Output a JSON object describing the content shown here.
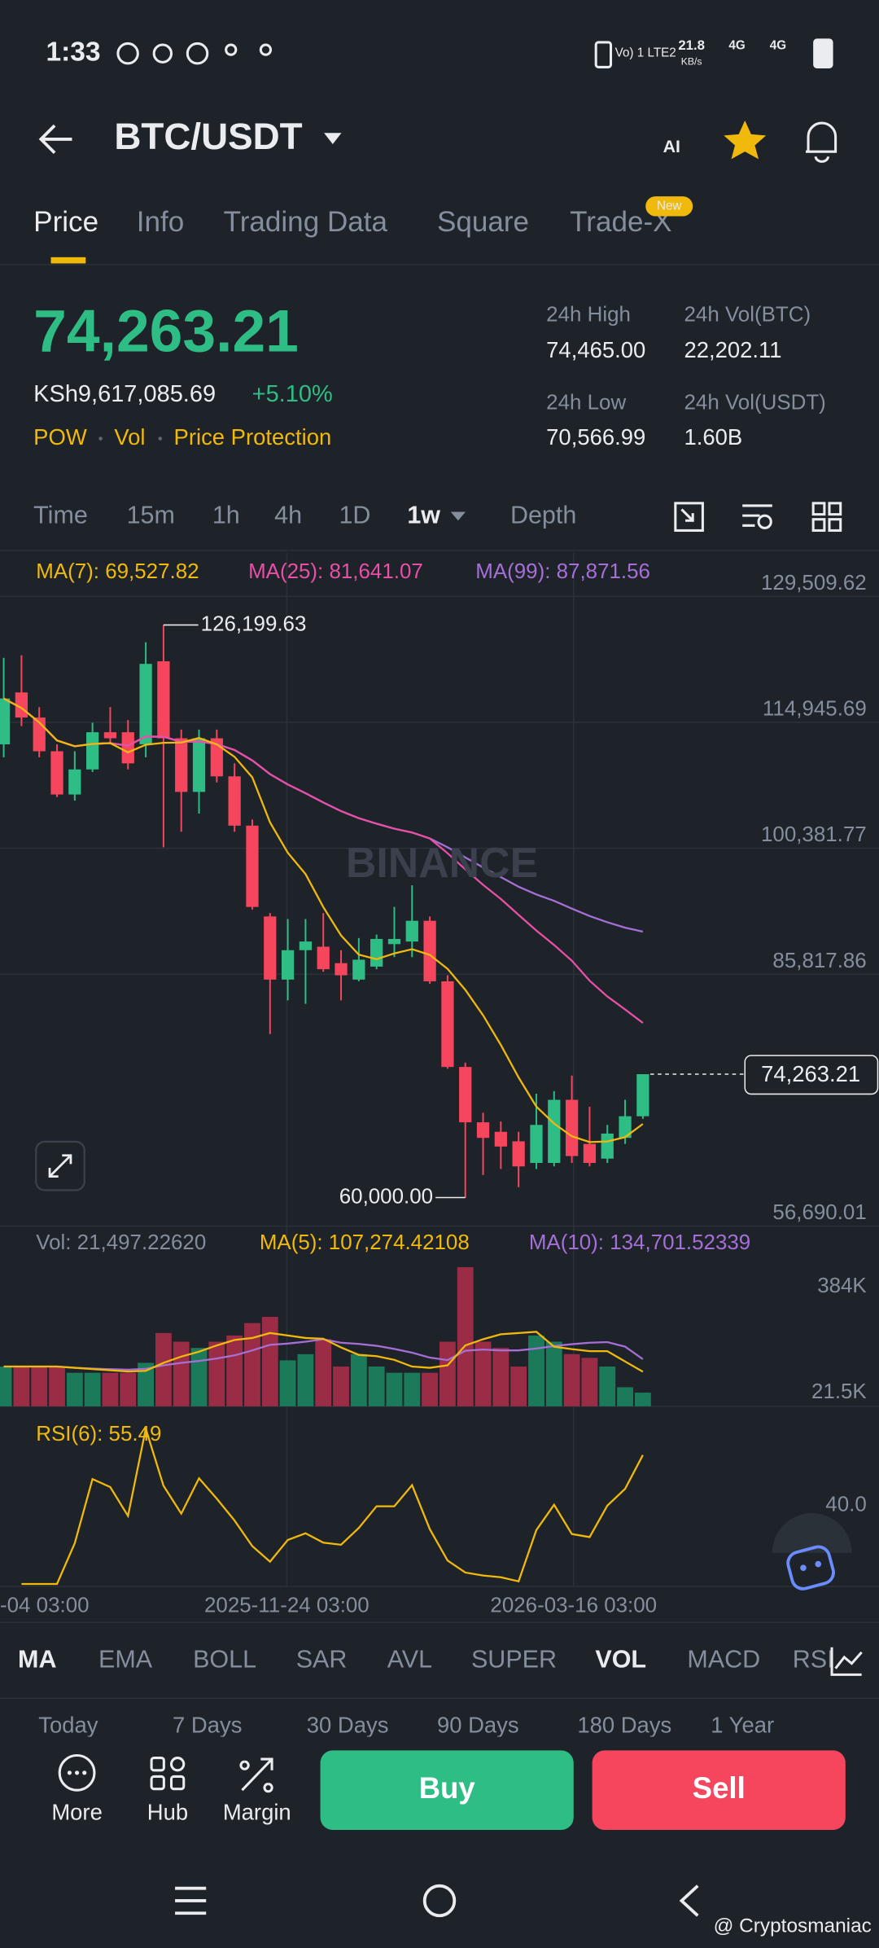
{
  "status_bar": {
    "time": "1:33",
    "lte": "Vo) 1 LTE2",
    "speed": "21.8",
    "speed_unit": "KB/s",
    "net1": "4G",
    "net2": "4G"
  },
  "header": {
    "pair": "BTC/USDT",
    "ai": "AI"
  },
  "tabs": [
    "Price",
    "Info",
    "Trading Data",
    "Square",
    "Trade-X"
  ],
  "new_badge": "New",
  "ticker": {
    "price": "74,263.21",
    "local": "KSh9,617,085.69",
    "change": "+5.10%",
    "tags": [
      "POW",
      "Vol",
      "Price Protection"
    ],
    "stats": [
      {
        "label": "24h High",
        "value": "74,465.00"
      },
      {
        "label": "24h Vol(BTC)",
        "value": "22,202.11"
      },
      {
        "label": "24h Low",
        "value": "70,566.99"
      },
      {
        "label": "24h Vol(USDT)",
        "value": "1.60B"
      }
    ]
  },
  "intervals": [
    "Time",
    "15m",
    "1h",
    "4h",
    "1D",
    "1w",
    "Depth"
  ],
  "chart": {
    "ma_legend": [
      "MA(7): 69,527.82",
      "MA(25): 81,641.07",
      "MA(99): 87,871.56"
    ],
    "watermark": "BINANCE",
    "yticks": [
      {
        "value": 129509.62,
        "label": "129,509.62"
      },
      {
        "value": 114945.69,
        "label": "114,945.69"
      },
      {
        "value": 100381.77,
        "label": "100,381.77"
      },
      {
        "value": 85817.86,
        "label": "85,817.86"
      },
      {
        "value": 56690.01,
        "label": "56,690.01"
      }
    ],
    "high_label": "126,199.63",
    "low_label": "60,000.00",
    "last_label": "74,263.21",
    "candles": [
      [
        112400,
        122400,
        110900,
        117700
      ],
      [
        118400,
        122700,
        114500,
        115500
      ],
      [
        115500,
        116700,
        110900,
        111600
      ],
      [
        111600,
        112400,
        106300,
        106600
      ],
      [
        106600,
        111600,
        105900,
        109500
      ],
      [
        109500,
        114900,
        109200,
        113800
      ],
      [
        113800,
        116700,
        112400,
        113100
      ],
      [
        113800,
        115200,
        109500,
        110200
      ],
      [
        112400,
        124200,
        110900,
        121700
      ],
      [
        122000,
        126199.63,
        100500,
        113100
      ],
      [
        113100,
        114100,
        102300,
        106900
      ],
      [
        106900,
        114100,
        104400,
        113100
      ],
      [
        113100,
        114100,
        108000,
        108700
      ],
      [
        108700,
        110200,
        102300,
        103000
      ],
      [
        103000,
        103700,
        93300,
        93600
      ],
      [
        92500,
        92900,
        78900,
        85200
      ],
      [
        85200,
        92200,
        82800,
        88600
      ],
      [
        88600,
        92200,
        82400,
        89600
      ],
      [
        89000,
        92900,
        86100,
        86400
      ],
      [
        87100,
        88600,
        82800,
        85700
      ],
      [
        85200,
        90000,
        85000,
        87500
      ],
      [
        86700,
        90400,
        86400,
        89900
      ],
      [
        89300,
        93600,
        87800,
        89900
      ],
      [
        89600,
        96100,
        87800,
        92000
      ],
      [
        92000,
        92500,
        84700,
        85000
      ],
      [
        85000,
        85700,
        74900,
        75100
      ],
      [
        75100,
        75600,
        60000,
        68700
      ],
      [
        68700,
        69800,
        62600,
        66900
      ],
      [
        67600,
        68800,
        63300,
        65900
      ],
      [
        66500,
        67600,
        61200,
        63600
      ],
      [
        64000,
        72000,
        63300,
        68400
      ],
      [
        64000,
        72300,
        63600,
        71300
      ],
      [
        71300,
        74100,
        64000,
        64800
      ],
      [
        66200,
        70500,
        63600,
        64000
      ],
      [
        64500,
        68400,
        64000,
        67400
      ],
      [
        66900,
        71300,
        66200,
        69400
      ],
      [
        69400,
        74263.21,
        69100,
        74263.21
      ]
    ],
    "x_labels": [
      "-04 03:00",
      "2025-11-24 03:00",
      "2026-03-16 03:00"
    ],
    "volume": {
      "legend": [
        "Vol: 21,497.22620",
        "MA(5): 107,274.42108",
        "MA(10): 134,701.52339"
      ],
      "yticks": [
        {
          "value": 384000,
          "label": "384K"
        },
        {
          "value": 21500,
          "label": "21.5K"
        }
      ],
      "values": [
        111100,
        111100,
        111100,
        111100,
        89700,
        89700,
        89700,
        89700,
        123900,
        226200,
        196400,
        175000,
        196400,
        217700,
        260300,
        281700,
        132400,
        153700,
        204900,
        111100,
        153700,
        111100,
        89700,
        89700,
        89700,
        196400,
        452300,
        196400,
        175000,
        111100,
        217700,
        196400,
        153700,
        140900,
        111100,
        40000,
        21497.2262
      ]
    },
    "rsi": {
      "legend": "RSI(6): 55.49",
      "yticks": [
        {
          "value": 40,
          "label": "40.0"
        }
      ]
    }
  },
  "indicators": [
    "MA",
    "EMA",
    "BOLL",
    "SAR",
    "AVL",
    "SUPER",
    "VOL",
    "MACD",
    "RSI"
  ],
  "periods": [
    "Today",
    "7 Days",
    "30 Days",
    "90 Days",
    "180 Days",
    "1 Year"
  ],
  "actions": {
    "more": "More",
    "hub": "Hub",
    "margin": "Margin",
    "buy": "Buy",
    "sell": "Sell"
  },
  "credit": "@ Cryptosmaniac"
}
